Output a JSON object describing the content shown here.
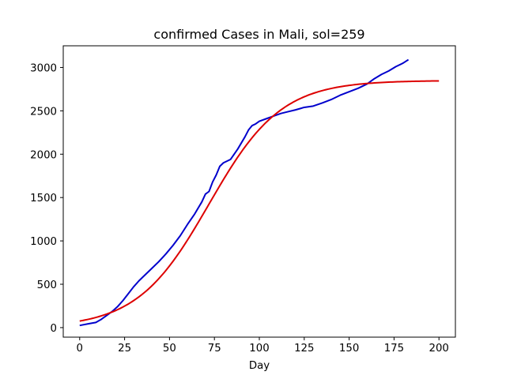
{
  "chart_data": {
    "type": "line",
    "title": "confirmed Cases in Mali, sol=259",
    "xlabel": "Day",
    "ylabel": "",
    "xlim": [
      -9.15,
      209.15
    ],
    "ylim": [
      -110,
      3250
    ],
    "x_ticks": [
      0,
      25,
      50,
      75,
      100,
      125,
      150,
      175,
      200
    ],
    "y_ticks": [
      0,
      500,
      1000,
      1500,
      2000,
      2500,
      3000
    ],
    "grid": false,
    "legend": "none",
    "series": [
      {
        "color": "#0000cc",
        "x": [
          0,
          5,
          9,
          12,
          15,
          18,
          21,
          24,
          27,
          30,
          33,
          36,
          40,
          44,
          48,
          52,
          56,
          60,
          64,
          68,
          70,
          72,
          74,
          76,
          78,
          80,
          84,
          88,
          92,
          94,
          96,
          98,
          100,
          104,
          108,
          112,
          116,
          120,
          125,
          130,
          135,
          140,
          145,
          150,
          155,
          160,
          164,
          168,
          172,
          176,
          180,
          183
        ],
        "y": [
          25,
          45,
          60,
          95,
          140,
          185,
          240,
          310,
          390,
          470,
          540,
          600,
          680,
          760,
          850,
          950,
          1060,
          1190,
          1310,
          1450,
          1540,
          1570,
          1680,
          1760,
          1860,
          1900,
          1940,
          2060,
          2200,
          2280,
          2330,
          2350,
          2380,
          2410,
          2440,
          2470,
          2490,
          2510,
          2540,
          2555,
          2590,
          2630,
          2680,
          2720,
          2760,
          2810,
          2870,
          2920,
          2960,
          3010,
          3050,
          3090
        ]
      },
      {
        "color": "#dd0000",
        "model": {
          "type": "logistic",
          "L": 2850,
          "k": 0.05,
          "x0": 72,
          "offset": 0
        },
        "x_range": [
          0,
          200
        ]
      }
    ]
  }
}
